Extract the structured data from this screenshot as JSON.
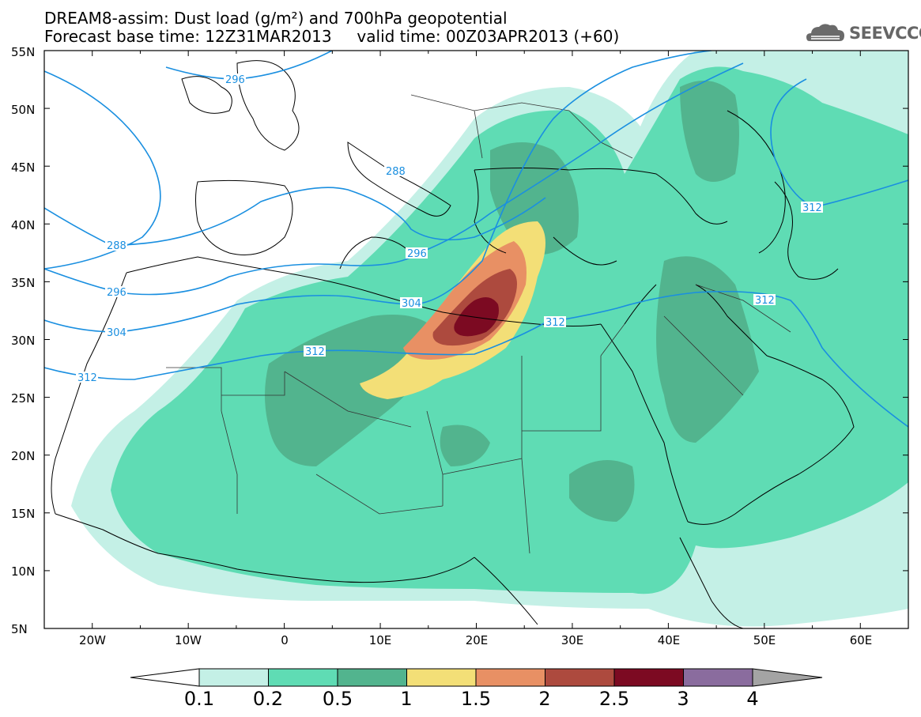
{
  "title": {
    "line1": "DREAM8-assim: Dust load (g/m²) and 700hPa geopotential",
    "line2": "Forecast base time: 12Z31MAR2013     valid time: 00Z03APR2013 (+60)"
  },
  "logo": {
    "text": "SEEVCCC",
    "icon": "cloud-logo-icon"
  },
  "axes": {
    "lat_labels": [
      "55N",
      "50N",
      "45N",
      "40N",
      "35N",
      "30N",
      "25N",
      "20N",
      "15N",
      "10N",
      "5N"
    ],
    "lon_labels": [
      "20W",
      "10W",
      "0",
      "10E",
      "20E",
      "30E",
      "40E",
      "50E",
      "60E"
    ],
    "lon_range": [
      -25,
      65
    ],
    "lat_range": [
      5,
      55
    ]
  },
  "geopotential_contour_labels": [
    "296",
    "288",
    "288",
    "296",
    "296",
    "304",
    "304",
    "312",
    "312",
    "312",
    "312",
    "312"
  ],
  "colorbar": {
    "labels": [
      "0.1",
      "0.2",
      "0.5",
      "1",
      "1.5",
      "2",
      "2.5",
      "3",
      "4"
    ],
    "colors": [
      "#c4f0e6",
      "#5fdcb4",
      "#52b48e",
      "#f3df77",
      "#e89064",
      "#ad4a3e",
      "#7c0a22",
      "#8a6c9e",
      "#a4a4a4"
    ],
    "under_color": "#ffffff"
  },
  "colors": {
    "contour_line": "#1a8fe0",
    "coast_line": "#000000",
    "border_line": "#333333"
  }
}
